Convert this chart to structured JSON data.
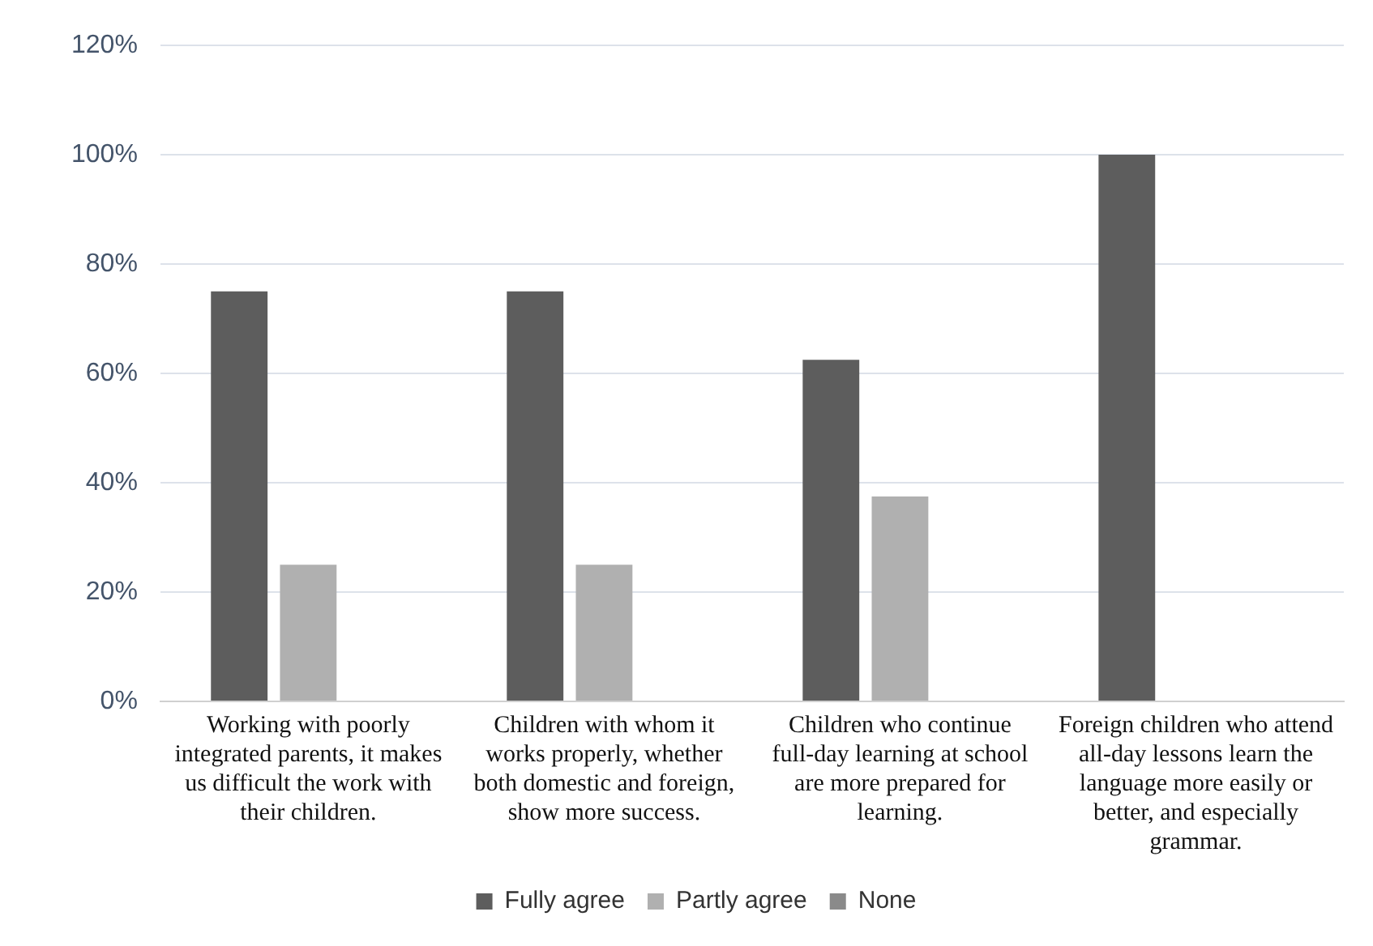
{
  "chart_data": {
    "type": "bar",
    "categories": [
      "Working with poorly integrated parents, it makes us difficult the work with their children.",
      "Children with whom it works properly, whether both domestic and foreign, show more success.",
      "Children who continue full-day learning at school are more prepared for learning.",
      "Foreign children who attend all-day lessons learn the language more easily or better, and especially grammar."
    ],
    "series": [
      {
        "name": "Fully agree",
        "color": "#5d5d5d",
        "values": [
          75,
          75,
          62.5,
          100
        ]
      },
      {
        "name": "Partly agree",
        "color": "#b0b0b0",
        "values": [
          25,
          25,
          37.5,
          0
        ]
      },
      {
        "name": "None",
        "color": "#8a8a8a",
        "values": [
          0,
          0,
          0,
          0
        ]
      }
    ],
    "ylim": [
      0,
      120
    ],
    "yticks": [
      {
        "value": 0,
        "label": "0%"
      },
      {
        "value": 20,
        "label": "20%"
      },
      {
        "value": 40,
        "label": "40%"
      },
      {
        "value": 60,
        "label": "60%"
      },
      {
        "value": 80,
        "label": "80%"
      },
      {
        "value": 100,
        "label": "100%"
      },
      {
        "value": 120,
        "label": "120%"
      }
    ],
    "grid": "y",
    "legend": "bottom"
  }
}
